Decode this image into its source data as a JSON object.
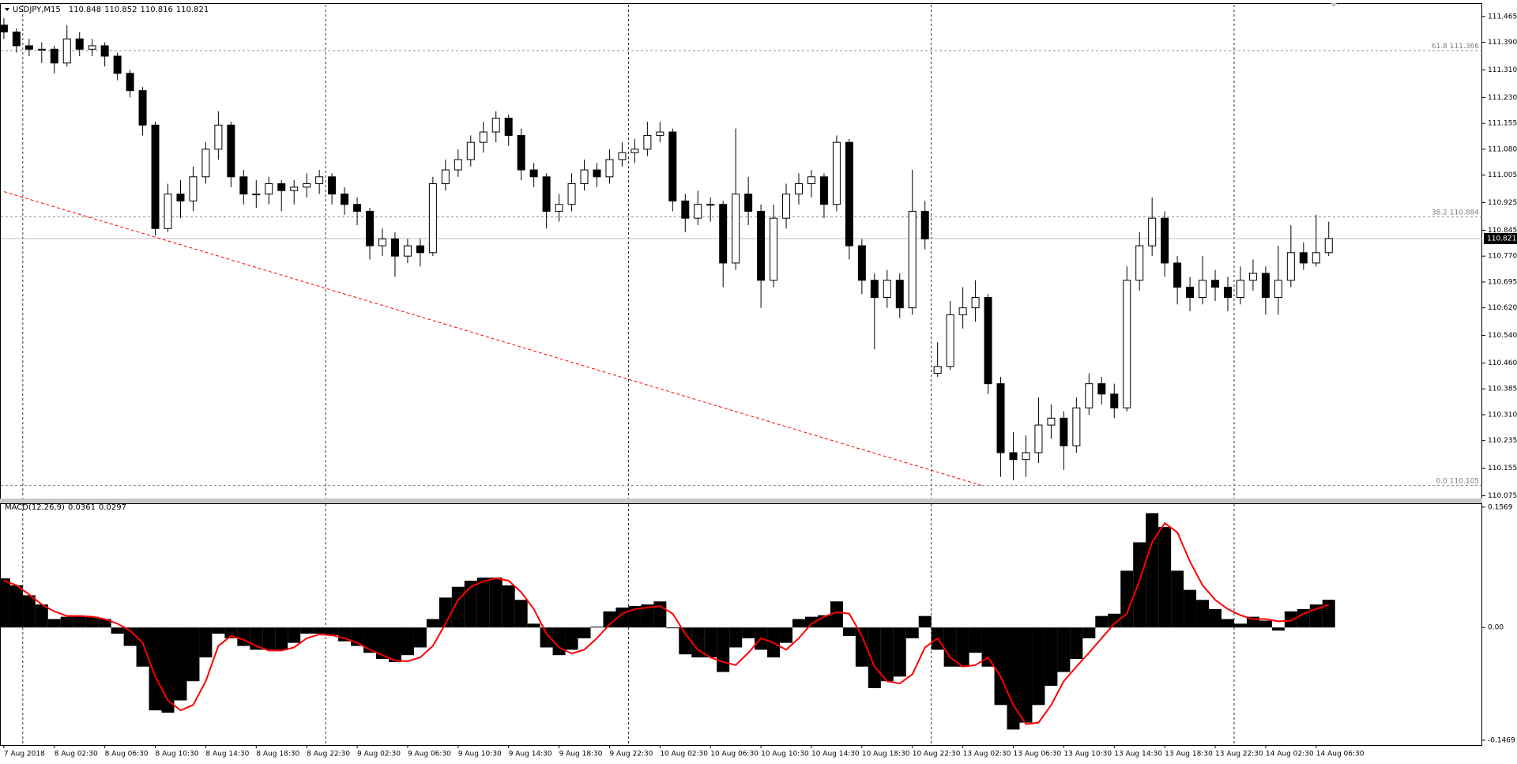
{
  "chart_data": [
    {
      "type": "candlestick",
      "title": "USDJPY,M15",
      "header_ohlc": [
        110.848,
        110.852,
        110.816,
        110.821
      ],
      "categories": [
        "7 Aug 2018",
        null,
        null,
        null,
        "8 Aug 02:30",
        null,
        null,
        null,
        "8 Aug 06:30",
        null,
        null,
        null,
        "8 Aug 10:30",
        null,
        null,
        null,
        "8 Aug 14:30",
        null,
        null,
        null,
        "8 Aug 18:30",
        null,
        null,
        null,
        "8 Aug 22:30",
        null,
        null,
        null,
        "9 Aug 02:30",
        null,
        null,
        null,
        "9 Aug 06:30",
        null,
        null,
        null,
        "9 Aug 10:30",
        null,
        null,
        null,
        "9 Aug 14:30",
        null,
        null,
        null,
        "9 Aug 18:30",
        null,
        null,
        null,
        "9 Aug 22:30",
        null,
        null,
        null,
        "10 Aug 02:30",
        null,
        null,
        null,
        "10 Aug 06:30",
        null,
        null,
        null,
        "10 Aug 10:30",
        null,
        null,
        null,
        "10 Aug 14:30",
        null,
        null,
        null,
        "10 Aug 18:30",
        null,
        null,
        null,
        "10 Aug 22:30",
        null,
        null,
        null,
        "13 Aug 02:30",
        null,
        null,
        null,
        "13 Aug 06:30",
        null,
        null,
        null,
        "13 Aug 10:30",
        null,
        null,
        null,
        "13 Aug 14:30",
        null,
        null,
        null,
        "13 Aug 18:30",
        null,
        null,
        null,
        "13 Aug 22:30",
        null,
        null,
        null,
        "14 Aug 02:30",
        null,
        null,
        null,
        "14 Aug 06:30",
        null
      ],
      "ohlc": [
        [
          111.44,
          111.46,
          111.4,
          111.42
        ],
        [
          111.42,
          111.43,
          111.36,
          111.38
        ],
        [
          111.38,
          111.4,
          111.35,
          111.37
        ],
        [
          111.37,
          111.39,
          111.33,
          111.37
        ],
        [
          111.37,
          111.38,
          111.3,
          111.33
        ],
        [
          111.33,
          111.44,
          111.32,
          111.4
        ],
        [
          111.4,
          111.42,
          111.35,
          111.37
        ],
        [
          111.37,
          111.4,
          111.35,
          111.38
        ],
        [
          111.38,
          111.39,
          111.32,
          111.35
        ],
        [
          111.35,
          111.36,
          111.28,
          111.3
        ],
        [
          111.3,
          111.31,
          111.23,
          111.25
        ],
        [
          111.25,
          111.26,
          111.12,
          111.15
        ],
        [
          111.15,
          111.16,
          110.83,
          110.85
        ],
        [
          110.85,
          110.98,
          110.84,
          110.95
        ],
        [
          110.95,
          110.99,
          110.88,
          110.93
        ],
        [
          110.93,
          111.03,
          110.9,
          111.0
        ],
        [
          111.0,
          111.1,
          110.98,
          111.08
        ],
        [
          111.08,
          111.19,
          111.05,
          111.15
        ],
        [
          111.15,
          111.16,
          110.97,
          111.0
        ],
        [
          111.0,
          111.02,
          110.92,
          110.95
        ],
        [
          110.95,
          110.99,
          110.91,
          110.95
        ],
        [
          110.95,
          111.0,
          110.92,
          110.98
        ],
        [
          110.98,
          110.99,
          110.9,
          110.96
        ],
        [
          110.96,
          110.99,
          110.92,
          110.97
        ],
        [
          110.97,
          111.01,
          110.94,
          110.98
        ],
        [
          110.98,
          111.02,
          110.95,
          111.0
        ],
        [
          111.0,
          111.01,
          110.92,
          110.95
        ],
        [
          110.95,
          110.97,
          110.89,
          110.92
        ],
        [
          110.92,
          110.94,
          110.86,
          110.9
        ],
        [
          110.9,
          110.91,
          110.76,
          110.8
        ],
        [
          110.8,
          110.85,
          110.77,
          110.82
        ],
        [
          110.82,
          110.84,
          110.71,
          110.77
        ],
        [
          110.77,
          110.82,
          110.75,
          110.8
        ],
        [
          110.8,
          110.82,
          110.74,
          110.78
        ],
        [
          110.78,
          111.0,
          110.77,
          110.98
        ],
        [
          110.98,
          111.05,
          110.96,
          111.02
        ],
        [
          111.02,
          111.08,
          111.0,
          111.05
        ],
        [
          111.05,
          111.12,
          111.03,
          111.1
        ],
        [
          111.1,
          111.16,
          111.07,
          111.13
        ],
        [
          111.13,
          111.19,
          111.1,
          111.17
        ],
        [
          111.17,
          111.18,
          111.09,
          111.12
        ],
        [
          111.12,
          111.14,
          110.99,
          111.02
        ],
        [
          111.02,
          111.04,
          110.97,
          111.0
        ],
        [
          111.0,
          111.01,
          110.85,
          110.9
        ],
        [
          110.9,
          110.95,
          110.87,
          110.92
        ],
        [
          110.92,
          111.01,
          110.9,
          110.98
        ],
        [
          110.98,
          111.05,
          110.96,
          111.02
        ],
        [
          111.02,
          111.04,
          110.97,
          111.0
        ],
        [
          111.0,
          111.08,
          110.98,
          111.05
        ],
        [
          111.05,
          111.1,
          111.03,
          111.07
        ],
        [
          111.07,
          111.11,
          111.04,
          111.08
        ],
        [
          111.08,
          111.16,
          111.06,
          111.12
        ],
        [
          111.12,
          111.16,
          111.1,
          111.13
        ],
        [
          111.13,
          111.14,
          110.9,
          110.93
        ],
        [
          110.93,
          110.95,
          110.84,
          110.88
        ],
        [
          110.88,
          110.96,
          110.86,
          110.92
        ],
        [
          110.92,
          110.94,
          110.87,
          110.92
        ],
        [
          110.92,
          110.93,
          110.68,
          110.75
        ],
        [
          110.75,
          111.14,
          110.73,
          110.95
        ],
        [
          110.95,
          111.0,
          110.86,
          110.9
        ],
        [
          110.9,
          110.92,
          110.62,
          110.7
        ],
        [
          110.7,
          110.92,
          110.68,
          110.88
        ],
        [
          110.88,
          110.98,
          110.85,
          110.95
        ],
        [
          110.95,
          111.01,
          110.92,
          110.98
        ],
        [
          110.98,
          111.02,
          110.94,
          111.0
        ],
        [
          111.0,
          111.01,
          110.88,
          110.92
        ],
        [
          110.92,
          111.12,
          110.9,
          111.1
        ],
        [
          111.1,
          111.11,
          110.76,
          110.8
        ],
        [
          110.8,
          110.82,
          110.66,
          110.7
        ],
        [
          110.7,
          110.72,
          110.5,
          110.65
        ],
        [
          110.65,
          110.73,
          110.62,
          110.7
        ],
        [
          110.7,
          110.72,
          110.59,
          110.62
        ],
        [
          110.62,
          111.02,
          110.6,
          110.9
        ],
        [
          110.9,
          110.93,
          110.79,
          110.82
        ],
        [
          110.43,
          110.52,
          110.42,
          110.45
        ],
        [
          110.45,
          110.64,
          110.44,
          110.6
        ],
        [
          110.6,
          110.68,
          110.56,
          110.62
        ],
        [
          110.62,
          110.7,
          110.58,
          110.65
        ],
        [
          110.65,
          110.66,
          110.37,
          110.4
        ],
        [
          110.4,
          110.42,
          110.13,
          110.2
        ],
        [
          110.2,
          110.26,
          110.12,
          110.18
        ],
        [
          110.18,
          110.25,
          110.13,
          110.2
        ],
        [
          110.2,
          110.36,
          110.17,
          110.28
        ],
        [
          110.28,
          110.34,
          110.24,
          110.3
        ],
        [
          110.3,
          110.32,
          110.15,
          110.22
        ],
        [
          110.22,
          110.36,
          110.2,
          110.33
        ],
        [
          110.33,
          110.43,
          110.31,
          110.4
        ],
        [
          110.4,
          110.42,
          110.34,
          110.37
        ],
        [
          110.37,
          110.4,
          110.3,
          110.33
        ],
        [
          110.33,
          110.74,
          110.32,
          110.7
        ],
        [
          110.7,
          110.84,
          110.67,
          110.8
        ],
        [
          110.8,
          110.94,
          110.77,
          110.88
        ],
        [
          110.88,
          110.9,
          110.71,
          110.75
        ],
        [
          110.75,
          110.77,
          110.63,
          110.68
        ],
        [
          110.68,
          110.71,
          110.61,
          110.65
        ],
        [
          110.65,
          110.77,
          110.63,
          110.7
        ],
        [
          110.7,
          110.73,
          110.64,
          110.68
        ],
        [
          110.68,
          110.71,
          110.61,
          110.65
        ],
        [
          110.65,
          110.74,
          110.63,
          110.7
        ],
        [
          110.7,
          110.76,
          110.67,
          110.72
        ],
        [
          110.72,
          110.74,
          110.6,
          110.65
        ],
        [
          110.65,
          110.8,
          110.6,
          110.7
        ],
        [
          110.7,
          110.86,
          110.68,
          110.78
        ],
        [
          110.78,
          110.81,
          110.73,
          110.75
        ],
        [
          110.75,
          110.89,
          110.74,
          110.78
        ],
        [
          110.78,
          110.87,
          110.77,
          110.821
        ]
      ],
      "up_color": "#ffffff",
      "down_color": "#000000",
      "outline_color": "#000000",
      "ylim": [
        110.067,
        111.499
      ],
      "yticks": [
        111.465,
        {
          "value": 111.39,
          "label": "111.390"
        },
        {
          "value": 111.31,
          "label": "111.310"
        },
        {
          "value": 111.23,
          "label": "111.230"
        },
        111.155,
        {
          "value": 111.08,
          "label": "111.080"
        },
        111.005,
        110.925,
        110.845,
        {
          "value": 110.77,
          "label": "110.770"
        },
        110.695,
        {
          "value": 110.62,
          "label": "110.620"
        },
        {
          "value": 110.54,
          "label": "110.540"
        },
        {
          "value": 110.46,
          "label": "110.460"
        },
        110.385,
        {
          "value": 110.31,
          "label": "110.310"
        },
        110.235,
        110.155,
        110.075
      ],
      "fib_levels": [
        {
          "label": "61.8",
          "value": 111.366
        },
        {
          "label": "38.2",
          "value": 110.884
        },
        {
          "label": "0.0",
          "value": 110.105
        }
      ],
      "trendline": {
        "color": "#ff0000",
        "x": [
          0,
          77.5
        ],
        "y": [
          110.957,
          110.105
        ]
      }
    },
    {
      "type": "macd",
      "title": "MACD(12,26,9)",
      "series": [
        {
          "color": "#000000",
          "values": [
            0.064,
            0.055,
            0.042,
            0.03,
            0.011,
            0.014,
            0.015,
            0.014,
            0.011,
            -0.008,
            -0.024,
            -0.051,
            -0.108,
            -0.111,
            -0.095,
            -0.07,
            -0.039,
            -0.008,
            -0.014,
            -0.024,
            -0.029,
            -0.029,
            -0.029,
            -0.02,
            -0.008,
            -0.008,
            -0.01,
            -0.018,
            -0.024,
            -0.033,
            -0.041,
            -0.045,
            -0.036,
            -0.026,
            0.011,
            0.039,
            0.053,
            0.061,
            0.065,
            0.065,
            0.055,
            0.036,
            0.005,
            -0.026,
            -0.036,
            -0.029,
            -0.014,
            0.001,
            0.021,
            0.026,
            0.028,
            0.03,
            0.034,
            -0.001,
            -0.035,
            -0.039,
            -0.039,
            -0.058,
            -0.026,
            -0.014,
            -0.029,
            -0.039,
            -0.02,
            0.011,
            0.014,
            0.016,
            0.034,
            -0.011,
            -0.051,
            -0.079,
            -0.07,
            -0.064,
            -0.014,
            0.015,
            -0.029,
            -0.051,
            -0.051,
            -0.033,
            -0.051,
            -0.101,
            -0.133,
            -0.124,
            -0.101,
            -0.076,
            -0.058,
            -0.041,
            -0.014,
            0.015,
            0.018,
            0.074,
            0.111,
            0.149,
            0.131,
            0.074,
            0.049,
            0.036,
            0.024,
            0.011,
            0.005,
            0.014,
            0.009,
            -0.004,
            0.021,
            0.024,
            0.03,
            0.0361
          ]
        },
        {
          "color": "#ff0000",
          "values": [
            0.061,
            0.055,
            0.043,
            0.03,
            0.021,
            0.015,
            0.015,
            0.014,
            0.011,
            0.005,
            -0.004,
            -0.02,
            -0.064,
            -0.095,
            -0.108,
            -0.101,
            -0.07,
            -0.024,
            -0.011,
            -0.016,
            -0.024,
            -0.03,
            -0.03,
            -0.026,
            -0.014,
            -0.009,
            -0.01,
            -0.014,
            -0.02,
            -0.029,
            -0.036,
            -0.043,
            -0.044,
            -0.039,
            -0.024,
            0.005,
            0.036,
            0.053,
            0.06,
            0.064,
            0.061,
            0.046,
            0.024,
            -0.008,
            -0.026,
            -0.034,
            -0.029,
            -0.014,
            0.004,
            0.018,
            0.024,
            0.026,
            0.028,
            0.018,
            -0.008,
            -0.029,
            -0.039,
            -0.045,
            -0.049,
            -0.033,
            -0.014,
            -0.02,
            -0.029,
            -0.014,
            0.005,
            0.014,
            0.02,
            0.018,
            -0.011,
            -0.051,
            -0.07,
            -0.073,
            -0.061,
            -0.026,
            -0.014,
            -0.039,
            -0.051,
            -0.049,
            -0.039,
            -0.064,
            -0.101,
            -0.126,
            -0.124,
            -0.101,
            -0.07,
            -0.051,
            -0.033,
            -0.014,
            0.005,
            0.018,
            0.061,
            0.111,
            0.136,
            0.124,
            0.086,
            0.055,
            0.036,
            0.024,
            0.016,
            0.011,
            0.011,
            0.008,
            0.009,
            0.018,
            0.024,
            0.0297
          ]
        }
      ],
      "ylim": [
        -0.1532,
        0.1619
      ],
      "yticks": [
        0.1569,
        {
          "value": 0,
          "label": "0.00"
        },
        -0.1469
      ]
    }
  ]
}
